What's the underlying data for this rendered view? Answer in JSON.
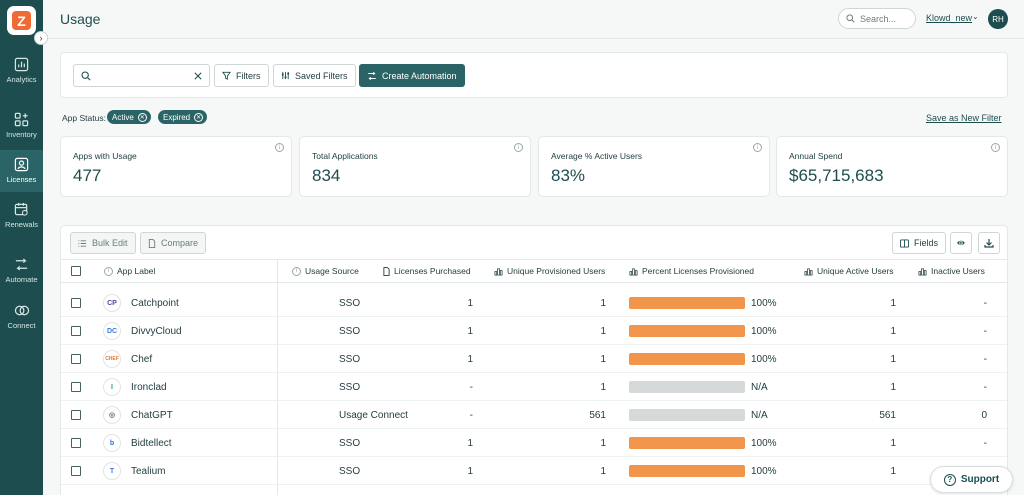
{
  "sidebar": {
    "logo_letter": "Z",
    "items": [
      {
        "label": "Analytics",
        "icon": "bar-chart-icon",
        "active": false
      },
      {
        "label": "Inventory",
        "icon": "grid-plus-icon",
        "active": false
      },
      {
        "label": "Licenses",
        "icon": "id-badge-icon",
        "active": true
      },
      {
        "label": "Renewals",
        "icon": "calendar-refresh-icon",
        "active": false
      },
      {
        "label": "Automate",
        "icon": "flow-arrows-icon",
        "active": false
      },
      {
        "label": "Connect",
        "icon": "link-rings-icon",
        "active": false
      }
    ]
  },
  "header": {
    "title": "Usage",
    "search_placeholder": "Search...",
    "user_name": "Klowd_new",
    "avatar_initials": "RH"
  },
  "toolbar": {
    "search_value": "",
    "filters_label": "Filters",
    "saved_filters_label": "Saved Filters",
    "create_automation_label": "Create Automation"
  },
  "status": {
    "label": "App Status:",
    "pills": [
      "Active",
      "Expired"
    ],
    "save_filter_label": "Save as New Filter"
  },
  "stats": [
    {
      "title": "Apps with Usage",
      "value": "477"
    },
    {
      "title": "Total Applications",
      "value": "834"
    },
    {
      "title": "Average % Active Users",
      "value": "83%"
    },
    {
      "title": "Annual Spend",
      "value": "$65,715,683"
    }
  ],
  "table": {
    "bulk_edit_label": "Bulk Edit",
    "compare_label": "Compare",
    "fields_label": "Fields",
    "columns": [
      "App Label",
      "Usage Source",
      "Licenses Purchased",
      "Unique Provisioned Users",
      "Percent Licenses Provisioned",
      "Unique Active Users",
      "Inactive Users"
    ],
    "rows": [
      {
        "app": "Catchpoint",
        "logo": "CP",
        "logo_color": "#5a3fa0",
        "source": "SSO",
        "purchased": "1",
        "provisioned": "1",
        "pct": 1.0,
        "pct_label": "100%",
        "active": "1",
        "inactive": "-"
      },
      {
        "app": "DivvyCloud",
        "logo": "DC",
        "logo_color": "#3a7bd5",
        "source": "SSO",
        "purchased": "1",
        "provisioned": "1",
        "pct": 1.0,
        "pct_label": "100%",
        "active": "1",
        "inactive": "-"
      },
      {
        "app": "Chef",
        "logo": "CHEF",
        "logo_color": "#e3742d",
        "source": "SSO",
        "purchased": "1",
        "provisioned": "1",
        "pct": 1.0,
        "pct_label": "100%",
        "active": "1",
        "inactive": "-"
      },
      {
        "app": "Ironclad",
        "logo": "I",
        "logo_color": "#1fa37a",
        "source": "SSO",
        "purchased": "-",
        "provisioned": "1",
        "pct": 0,
        "pct_label": "N/A",
        "active": "1",
        "inactive": "-"
      },
      {
        "app": "ChatGPT",
        "logo": "◎",
        "logo_color": "#6b6b6b",
        "source": "Usage Connect",
        "purchased": "-",
        "provisioned": "561",
        "pct": 0,
        "pct_label": "N/A",
        "active": "561",
        "inactive": "0"
      },
      {
        "app": "Bidtellect",
        "logo": "b",
        "logo_color": "#2e6fd8",
        "source": "SSO",
        "purchased": "1",
        "provisioned": "1",
        "pct": 1.0,
        "pct_label": "100%",
        "active": "1",
        "inactive": "-"
      },
      {
        "app": "Tealium",
        "logo": "T",
        "logo_color": "#3a7bd5",
        "source": "SSO",
        "purchased": "1",
        "provisioned": "1",
        "pct": 1.0,
        "pct_label": "100%",
        "active": "1",
        "inactive": "-"
      }
    ]
  },
  "support_label": "Support",
  "colors": {
    "sidebar": "#1e4d4f",
    "accent": "#2b6466",
    "bar_fill": "#f0954a",
    "bar_empty": "#d6d9d9"
  }
}
